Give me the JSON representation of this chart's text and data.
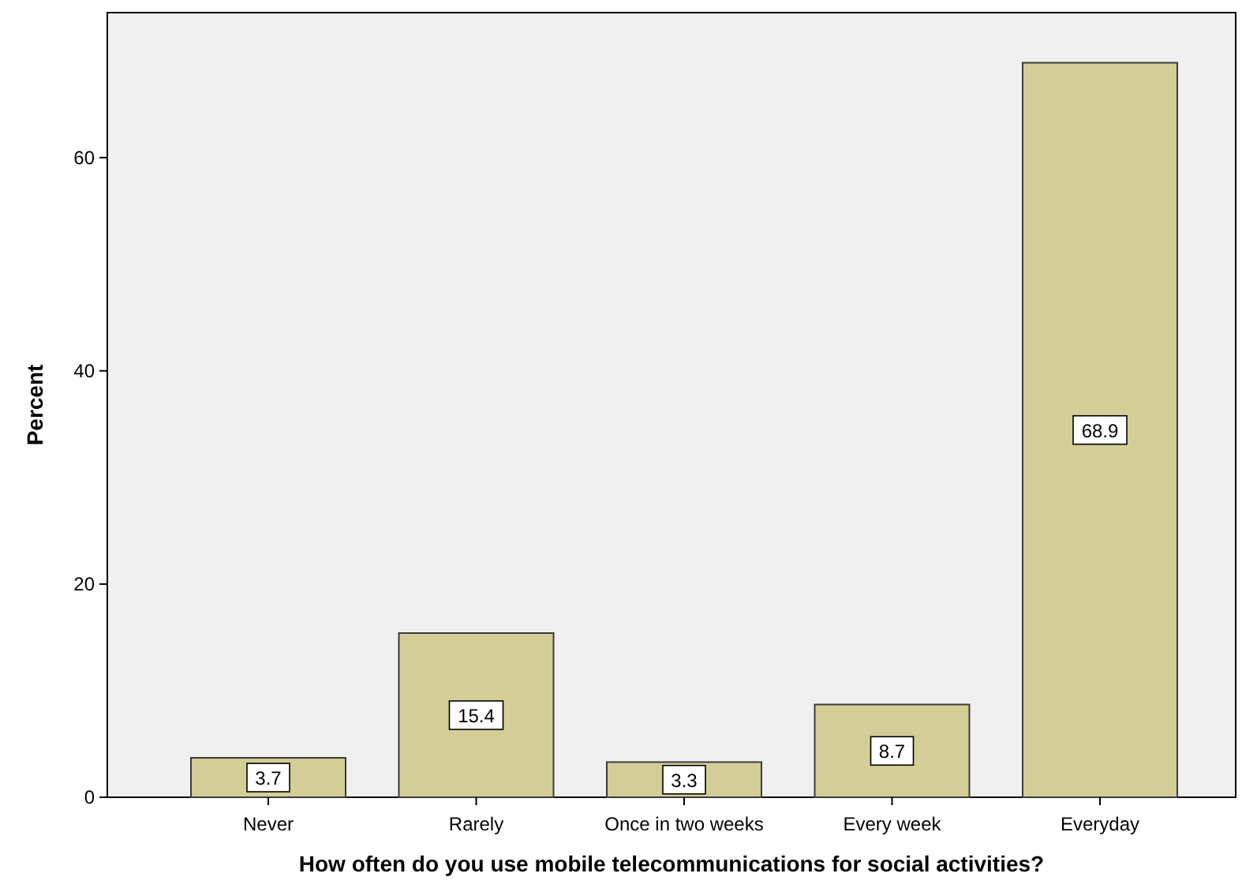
{
  "chart_data": {
    "type": "bar",
    "xlabel": "How often do you use mobile telecommunications for social activities?",
    "ylabel": "Percent",
    "categories": [
      "Never",
      "Rarely",
      "Once in two weeks",
      "Every week",
      "Everyday"
    ],
    "values": [
      3.7,
      15.4,
      3.3,
      8.7,
      68.9
    ],
    "color": "#d3ce97",
    "data_labels": true,
    "ylim": [
      0,
      73.6
    ],
    "yticks": [
      0,
      20,
      40,
      60
    ],
    "grid": false
  }
}
